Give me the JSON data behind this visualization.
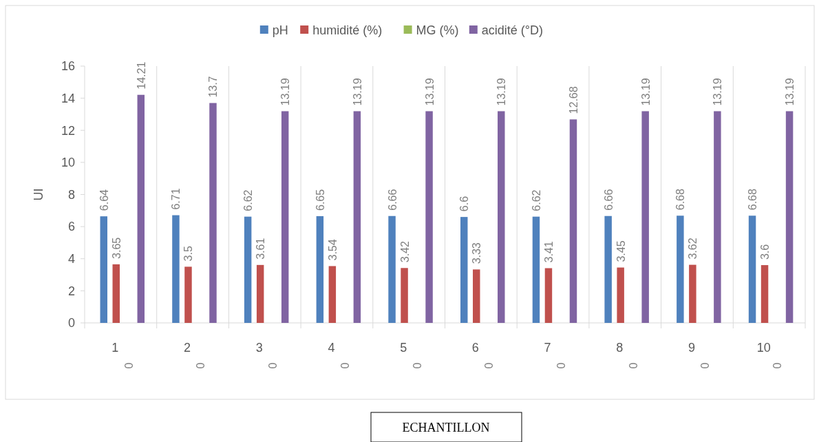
{
  "chart_data": {
    "type": "bar",
    "annotations": [
      "ECHANTILLON"
    ],
    "ylabel": "UI",
    "categories": [
      "1",
      "2",
      "3",
      "4",
      "5",
      "6",
      "7",
      "8",
      "9",
      "10"
    ],
    "series": [
      {
        "name": "pH",
        "color": "#4f81bd",
        "values": [
          6.64,
          6.71,
          6.62,
          6.65,
          6.66,
          6.6,
          6.62,
          6.66,
          6.68,
          6.68
        ]
      },
      {
        "name": "humidité (%)",
        "color": "#c0504d",
        "values": [
          3.65,
          3.5,
          3.61,
          3.54,
          3.42,
          3.33,
          3.41,
          3.45,
          3.62,
          3.6
        ]
      },
      {
        "name": "MG (%)",
        "color": "#9bbb59",
        "values": [
          0,
          0,
          0,
          0,
          0,
          0,
          0,
          0,
          0,
          0
        ]
      },
      {
        "name": "acidité (°D)",
        "color": "#8064a2",
        "values": [
          14.21,
          13.7,
          13.19,
          13.19,
          13.19,
          13.19,
          12.68,
          13.19,
          13.19,
          13.19
        ]
      }
    ],
    "ylim": [
      0,
      16
    ],
    "yticks": [
      0,
      2,
      4,
      6,
      8,
      10,
      12,
      14,
      16
    ],
    "grid": "x",
    "legend": "top",
    "data_labels": true
  }
}
